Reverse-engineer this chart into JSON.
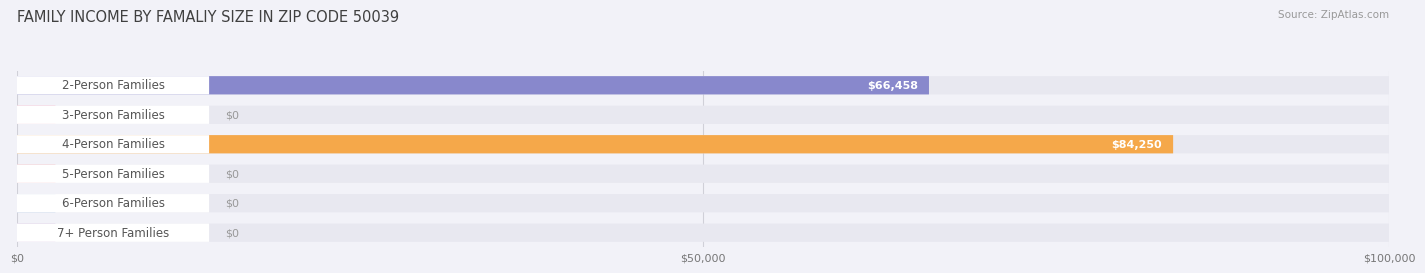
{
  "title": "FAMILY INCOME BY FAMALIY SIZE IN ZIP CODE 50039",
  "source": "Source: ZipAtlas.com",
  "categories": [
    "2-Person Families",
    "3-Person Families",
    "4-Person Families",
    "5-Person Families",
    "6-Person Families",
    "7+ Person Families"
  ],
  "values": [
    66458,
    0,
    84250,
    0,
    0,
    0
  ],
  "bar_colors": [
    "#8888cc",
    "#f4a0b8",
    "#f5a84a",
    "#f0a0a8",
    "#a8c0e0",
    "#c8b0d8"
  ],
  "label_colors": [
    "#8888cc",
    "#f4a0b8",
    "#f5a84a",
    "#f0a0a8",
    "#a8c0e0",
    "#c8b0d8"
  ],
  "bar_labels": [
    "$66,458",
    "$0",
    "$84,250",
    "$0",
    "$0",
    "$0"
  ],
  "xlim": [
    0,
    100000
  ],
  "xticks": [
    0,
    50000,
    100000
  ],
  "xtick_labels": [
    "$0",
    "$50,000",
    "$100,000"
  ],
  "bar_height": 0.62,
  "background_color": "#f2f2f8",
  "bar_bg_color": "#e8e8f0",
  "title_fontsize": 10.5,
  "label_fontsize": 8.5,
  "value_fontsize": 8
}
